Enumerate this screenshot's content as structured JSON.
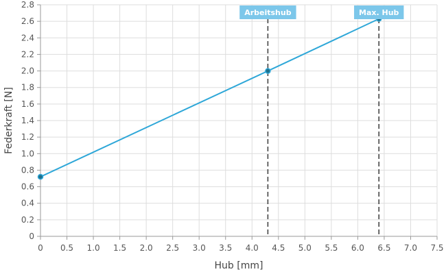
{
  "colors": {
    "series": "#2ea7d8",
    "point_fill": "#1f6f8b",
    "marker_label_bg": "#7cc7ea",
    "grid": "#dddddd",
    "axis": "#999999",
    "guide": "#444444"
  },
  "chart_data": {
    "type": "line",
    "xlabel": "Hub [mm]",
    "ylabel": "Federkraft [N]",
    "xlim": [
      0,
      7.5
    ],
    "ylim": [
      0,
      2.8
    ],
    "x_ticks": [
      "0",
      "0.5",
      "1.0",
      "1.5",
      "2.0",
      "2.5",
      "3.0",
      "3.5",
      "4.0",
      "4.5",
      "5.0",
      "5.5",
      "6.0",
      "6.5",
      "7.0",
      "7.5"
    ],
    "y_ticks": [
      "0",
      "0.2",
      "0.4",
      "0.6",
      "0.8",
      "1.0",
      "1.2",
      "1.4",
      "1.6",
      "1.8",
      "2.0",
      "2.2",
      "2.4",
      "2.6",
      "2.8"
    ],
    "grid": true,
    "series": [
      {
        "points": [
          {
            "x": 0,
            "y": 0.72
          },
          {
            "x": 4.3,
            "y": 2.0
          },
          {
            "x": 6.4,
            "y": 2.63
          }
        ]
      }
    ],
    "markers": [
      {
        "label": "Arbeitshub",
        "x": 4.3
      },
      {
        "label": "Max. Hub",
        "x": 6.4
      }
    ]
  }
}
